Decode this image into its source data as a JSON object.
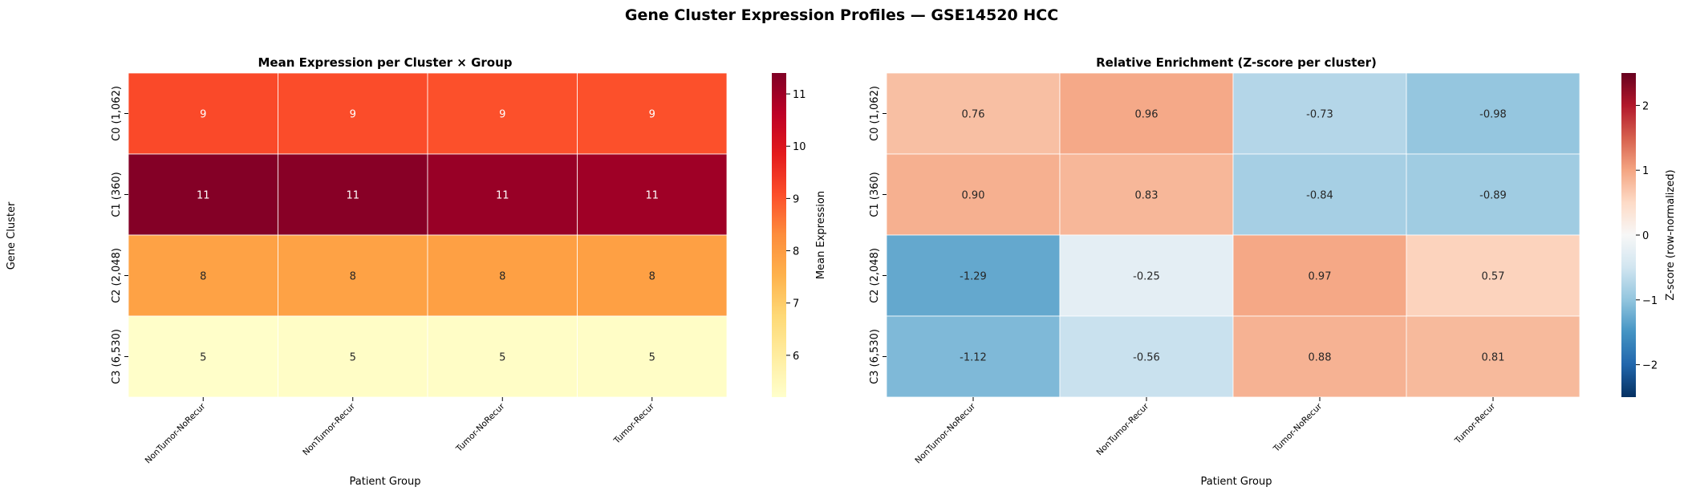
{
  "figure": {
    "suptitle": "Gene Cluster Expression Profiles — GSE14520 HCC"
  },
  "chart_data": [
    {
      "type": "heatmap",
      "title": "Mean Expression per Cluster × Group",
      "xlabel": "Patient Group",
      "ylabel": "Gene Cluster",
      "x_categories": [
        "NonTumor-NoRecur",
        "NonTumor-Recur",
        "Tumor-NoRecur",
        "Tumor-Recur"
      ],
      "y_categories": [
        "C0 (1,062)",
        "C1 (360)",
        "C2 (2,048)",
        "C3 (6,530)"
      ],
      "values": [
        [
          9.15,
          9.1,
          9.05,
          9.05
        ],
        [
          11.35,
          11.3,
          11.1,
          11.0
        ],
        [
          7.85,
          7.85,
          7.9,
          7.9
        ],
        [
          5.25,
          5.3,
          5.3,
          5.3
        ]
      ],
      "annotations": [
        [
          "9",
          "9",
          "9",
          "9"
        ],
        [
          "11",
          "11",
          "11",
          "11"
        ],
        [
          "8",
          "8",
          "8",
          "8"
        ],
        [
          "5",
          "5",
          "5",
          "5"
        ]
      ],
      "colormap": "YlOrRd",
      "colorbar": {
        "label": "Mean Expression",
        "range": [
          5.2,
          11.4
        ],
        "ticks": [
          6,
          7,
          8,
          9,
          10,
          11
        ]
      }
    },
    {
      "type": "heatmap",
      "title": "Relative Enrichment (Z-score per cluster)",
      "xlabel": "Patient Group",
      "ylabel": "",
      "x_categories": [
        "NonTumor-NoRecur",
        "NonTumor-Recur",
        "Tumor-NoRecur",
        "Tumor-Recur"
      ],
      "y_categories": [
        "C0 (1,062)",
        "C1 (360)",
        "C2 (2,048)",
        "C3 (6,530)"
      ],
      "values": [
        [
          0.76,
          0.96,
          -0.73,
          -0.98
        ],
        [
          0.9,
          0.83,
          -0.84,
          -0.89
        ],
        [
          -1.29,
          -0.25,
          0.97,
          0.57
        ],
        [
          -1.12,
          -0.56,
          0.88,
          0.81
        ]
      ],
      "annotations": [
        [
          "0.76",
          "0.96",
          "-0.73",
          "-0.98"
        ],
        [
          "0.90",
          "0.83",
          "-0.84",
          "-0.89"
        ],
        [
          "-1.29",
          "-0.25",
          "0.97",
          "0.57"
        ],
        [
          "-1.12",
          "-0.56",
          "0.88",
          "0.81"
        ]
      ],
      "colormap": "RdBu_r",
      "colorbar": {
        "label": "Z-score (row-normalized)",
        "range": [
          -2.5,
          2.5
        ],
        "ticks": [
          -2,
          -1,
          0,
          1,
          2
        ]
      }
    }
  ]
}
